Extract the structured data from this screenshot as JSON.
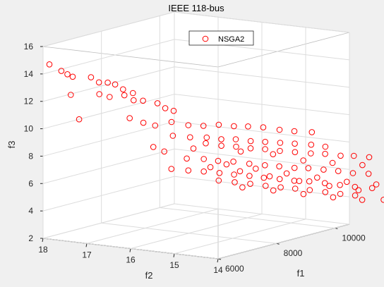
{
  "chart_data": {
    "type": "scatter",
    "title": "IEEE 118-bus",
    "xlabel": "f1",
    "ylabel": "f2",
    "zlabel": "f3",
    "xticks": [
      "6000",
      "8000",
      "10000"
    ],
    "yticks": [
      "14",
      "15",
      "16",
      "17",
      "18"
    ],
    "zticks": [
      "2",
      "4",
      "6",
      "8",
      "10",
      "12",
      "14",
      "16"
    ],
    "grid": true,
    "box": true,
    "legend": {
      "position": "top-center",
      "entries": [
        "NSGA2"
      ]
    },
    "series": [
      {
        "name": "NSGA2",
        "color": "#ff0000",
        "marker": "circle-open",
        "points": [
          [
            6053,
            17.89,
            14.71
          ],
          [
            6102,
            17.65,
            14.29
          ],
          [
            6204,
            17.58,
            14.02
          ],
          [
            6297,
            17.52,
            13.81
          ],
          [
            6502,
            17.24,
            13.76
          ],
          [
            6597,
            17.12,
            13.38
          ],
          [
            6702,
            16.99,
            13.35
          ],
          [
            6804,
            16.89,
            13.2
          ],
          [
            6896,
            16.77,
            12.83
          ],
          [
            7009,
            16.62,
            12.55
          ],
          [
            6896,
            16.74,
            12.41
          ],
          [
            7003,
            16.6,
            12.04
          ],
          [
            7102,
            16.45,
            12.01
          ],
          [
            7296,
            16.25,
            11.79
          ],
          [
            7353,
            16.11,
            11.45
          ],
          [
            7447,
            15.98,
            11.25
          ],
          [
            6201,
            17.5,
            12.55
          ],
          [
            6503,
            17.05,
            12.6
          ],
          [
            6601,
            16.88,
            12.4
          ],
          [
            6307,
            17.38,
            10.75
          ],
          [
            6898,
            16.62,
            10.78
          ],
          [
            7053,
            16.41,
            10.44
          ],
          [
            7202,
            16.24,
            10.22
          ],
          [
            7404,
            16.0,
            10.45
          ],
          [
            7604,
            15.75,
            10.2
          ],
          [
            7807,
            15.54,
            10.12
          ],
          [
            7987,
            15.31,
            10.18
          ],
          [
            8206,
            15.11,
            10.03
          ],
          [
            8392,
            14.91,
            9.98
          ],
          [
            8595,
            14.7,
            9.88
          ],
          [
            8811,
            14.47,
            9.67
          ],
          [
            9002,
            14.26,
            9.53
          ],
          [
            9244,
            14.02,
            9.42
          ],
          [
            7404,
            15.97,
            9.46
          ],
          [
            7604,
            15.71,
            9.33
          ],
          [
            7797,
            15.46,
            9.3
          ],
          [
            7998,
            15.26,
            9.14
          ],
          [
            8196,
            15.06,
            9.1
          ],
          [
            8406,
            14.86,
            8.92
          ],
          [
            8603,
            14.66,
            8.83
          ],
          [
            8802,
            14.45,
            8.73
          ],
          [
            9002,
            14.25,
            8.63
          ],
          [
            9203,
            14.01,
            8.53
          ],
          [
            9406,
            13.82,
            8.34
          ],
          [
            7796,
            15.48,
            8.87
          ],
          [
            8001,
            15.26,
            8.66
          ],
          [
            8207,
            15.06,
            8.55
          ],
          [
            8402,
            14.86,
            8.4
          ],
          [
            8601,
            14.66,
            8.3
          ],
          [
            8808,
            14.46,
            8.13
          ],
          [
            9009,
            14.25,
            8.01
          ],
          [
            9206,
            14.02,
            7.89
          ],
          [
            9397,
            13.82,
            7.82
          ],
          [
            9597,
            13.6,
            7.66
          ],
          [
            9798,
            13.43,
            7.6
          ],
          [
            10007,
            13.22,
            7.46
          ],
          [
            7597,
            15.78,
            7.76
          ],
          [
            7805,
            15.53,
            7.7
          ],
          [
            7996,
            15.33,
            7.53
          ],
          [
            8203,
            15.12,
            7.44
          ],
          [
            8405,
            14.89,
            7.26
          ],
          [
            8608,
            14.67,
            7.12
          ],
          [
            8801,
            14.47,
            7.0
          ],
          [
            9008,
            14.26,
            6.85
          ],
          [
            9196,
            14.07,
            6.8
          ],
          [
            9404,
            13.86,
            6.65
          ],
          [
            9593,
            13.65,
            6.52
          ],
          [
            9796,
            13.45,
            6.33
          ],
          [
            10001,
            13.23,
            6.25
          ],
          [
            7398,
            16.0,
            7.03
          ],
          [
            7603,
            15.75,
            6.9
          ],
          [
            7790,
            15.52,
            6.8
          ],
          [
            7996,
            15.3,
            6.66
          ],
          [
            8196,
            15.1,
            6.51
          ],
          [
            8395,
            14.88,
            6.38
          ],
          [
            8602,
            14.69,
            6.2
          ],
          [
            8800,
            14.46,
            6.08
          ],
          [
            9001,
            14.26,
            5.92
          ],
          [
            9201,
            14.05,
            5.84
          ],
          [
            9402,
            13.83,
            5.68
          ],
          [
            9606,
            13.62,
            5.51
          ],
          [
            9805,
            13.41,
            5.33
          ],
          [
            10050,
            13.18,
            5.2
          ],
          [
            8000,
            15.32,
            6.1
          ],
          [
            8203,
            15.09,
            5.95
          ],
          [
            8405,
            14.87,
            5.8
          ],
          [
            8604,
            14.65,
            5.62
          ],
          [
            8803,
            14.44,
            5.48
          ],
          [
            9002,
            14.24,
            5.35
          ],
          [
            9201,
            14.04,
            5.21
          ],
          [
            9402,
            13.82,
            5.03
          ],
          [
            9604,
            13.61,
            4.86
          ],
          [
            9797,
            13.4,
            4.72
          ],
          [
            7198,
            16.28,
            8.64
          ],
          [
            7305,
            16.1,
            8.32
          ],
          [
            7703,
            15.7,
            8.46
          ],
          [
            8305,
            15.02,
            8.16
          ],
          [
            8707,
            14.55,
            7.91
          ],
          [
            9100,
            14.12,
            7.4
          ],
          [
            9501,
            13.72,
            7.14
          ],
          [
            9895,
            13.3,
            6.92
          ],
          [
            8102,
            15.21,
            7.26
          ],
          [
            8504,
            14.81,
            6.87
          ],
          [
            8904,
            14.37,
            6.47
          ],
          [
            9304,
            13.94,
            6.1
          ],
          [
            9706,
            13.53,
            5.72
          ],
          [
            10102,
            13.12,
            5.46
          ],
          [
            8302,
            14.98,
            5.56
          ],
          [
            8702,
            14.54,
            5.27
          ],
          [
            9105,
            14.12,
            4.94
          ],
          [
            9507,
            13.71,
            4.63
          ],
          [
            9904,
            13.31,
            4.37
          ],
          [
            10203,
            13.02,
            4.32
          ],
          [
            7851,
            15.41,
            7.12
          ],
          [
            8251,
            15.0,
            6.76
          ],
          [
            8651,
            14.59,
            6.31
          ],
          [
            9051,
            14.18,
            5.9
          ],
          [
            9451,
            13.76,
            5.47
          ],
          [
            9851,
            13.36,
            5.09
          ]
        ]
      }
    ]
  }
}
